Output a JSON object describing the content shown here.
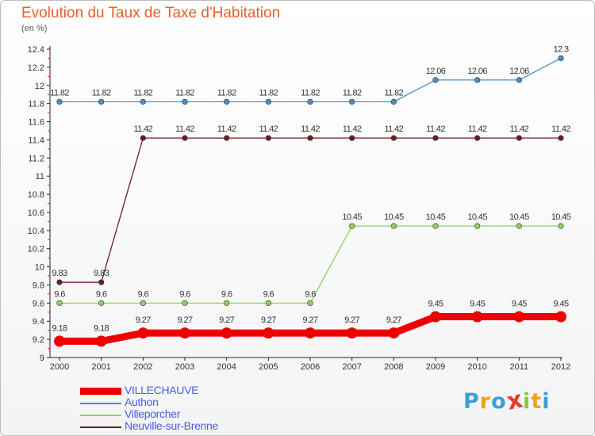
{
  "chart_data": {
    "type": "line",
    "title": "Evolution du Taux de Taxe d'Habitation",
    "subtitle": "(en %)",
    "x": [
      "2000",
      "2001",
      "2002",
      "2003",
      "2004",
      "2005",
      "2006",
      "2007",
      "2008",
      "2009",
      "2010",
      "2011",
      "2012"
    ],
    "ylim": [
      9,
      12.4
    ],
    "yticks": [
      "9",
      "9.2",
      "9.4",
      "9.6",
      "9.8",
      "10",
      "10.2",
      "10.4",
      "10.6",
      "10.8",
      "11",
      "11.2",
      "11.4",
      "11.6",
      "11.8",
      "12",
      "12.2",
      "12.4"
    ],
    "grid": false,
    "legend_position": "bottom-left",
    "series": [
      {
        "name": "Neuville-sur-Brenne",
        "color": "#6b1e1e",
        "values": [
          9.83,
          9.83,
          11.42,
          11.42,
          11.42,
          11.42,
          11.42,
          11.42,
          11.42,
          11.42,
          11.42,
          11.42,
          11.42
        ],
        "labels": [
          "9.83",
          "9.83",
          "11.42",
          "11.42",
          "11.42",
          "11.42",
          "11.42",
          "11.42",
          "11.42",
          "11.42",
          "11.42",
          "11.42",
          "11.42"
        ]
      },
      {
        "name": "Authon",
        "color": "#4a8ec8",
        "values": [
          11.82,
          11.82,
          11.82,
          11.82,
          11.82,
          11.82,
          11.82,
          11.82,
          11.82,
          12.06,
          12.06,
          12.06,
          12.3
        ],
        "labels": [
          "11.82",
          "11.82",
          "11.82",
          "11.82",
          "11.82",
          "11.82",
          "11.82",
          "11.82",
          "11.82",
          "12.06",
          "12.06",
          "12.06",
          "12.3"
        ]
      },
      {
        "name": "Villeporcher",
        "color": "#8fd35a",
        "values": [
          9.6,
          9.6,
          9.6,
          9.6,
          9.6,
          9.6,
          9.6,
          10.45,
          10.45,
          10.45,
          10.45,
          10.45,
          10.45
        ],
        "labels": [
          "9.6",
          "9.6",
          "9.6",
          "9.6",
          "9.6",
          "9.6",
          "9.6",
          "10.45",
          "10.45",
          "10.45",
          "10.45",
          "10.45",
          "10.45"
        ]
      },
      {
        "name": "VILLECHAUVE",
        "color": "#ee0000",
        "values": [
          9.18,
          9.18,
          9.27,
          9.27,
          9.27,
          9.27,
          9.27,
          9.27,
          9.27,
          9.45,
          9.45,
          9.45,
          9.45
        ],
        "labels": [
          "9.18",
          "9.18",
          "9.27",
          "9.27",
          "9.27",
          "9.27",
          "9.27",
          "9.27",
          "9.27",
          "9.45",
          "9.45",
          "9.45",
          "9.45"
        ]
      }
    ]
  },
  "legend": [
    {
      "label": "VILLECHAUVE",
      "color": "#ee0000"
    },
    {
      "label": "Authon",
      "color": "#4a8ec8"
    },
    {
      "label": "Villeporcher",
      "color": "#8fd35a"
    },
    {
      "label": "Neuville-sur-Brenne",
      "color": "#6b1e1e"
    }
  ],
  "logo": {
    "text": "Proxiti",
    "letters": [
      "P",
      "r",
      "o",
      "x",
      "i",
      "t",
      "i"
    ],
    "colors": [
      "#3aa0d8",
      "#f0a020",
      "#3aa0d8",
      "#e83a2a",
      "#8cc63f",
      "#f0a020",
      "#3aa0d8"
    ]
  }
}
